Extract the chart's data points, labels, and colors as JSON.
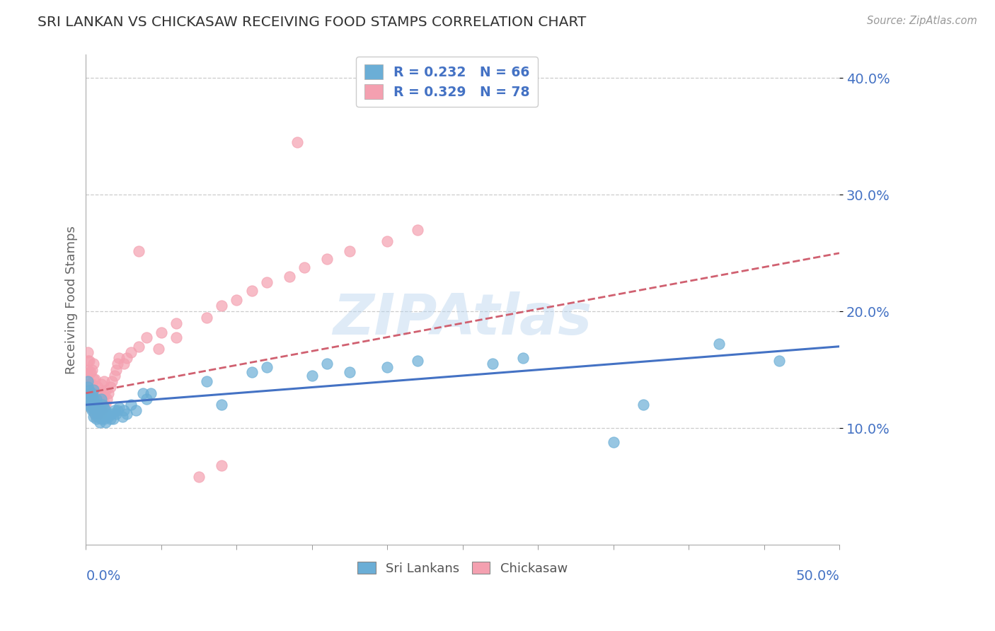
{
  "title": "SRI LANKAN VS CHICKASAW RECEIVING FOOD STAMPS CORRELATION CHART",
  "source": "Source: ZipAtlas.com",
  "ylabel": "Receiving Food Stamps",
  "legend_label1": "Sri Lankans",
  "legend_label2": "Chickasaw",
  "legend_r1": "R = 0.232",
  "legend_n1": "N = 66",
  "legend_r2": "R = 0.329",
  "legend_n2": "N = 78",
  "xlim": [
    0.0,
    0.5
  ],
  "ylim": [
    0.0,
    0.42
  ],
  "yticks": [
    0.1,
    0.2,
    0.3,
    0.4
  ],
  "ytick_labels": [
    "10.0%",
    "20.0%",
    "30.0%",
    "40.0%"
  ],
  "color_sri": "#6baed6",
  "color_chickasaw": "#f4a0b0",
  "trendline_sri_color": "#4472c4",
  "trendline_chickasaw_color": "#d06070",
  "watermark": "ZIPAtlas",
  "watermark_color": "#b8d4ee",
  "background_color": "#ffffff",
  "grid_color": "#cccccc",
  "sri_x": [
    0.001,
    0.001,
    0.001,
    0.001,
    0.002,
    0.002,
    0.002,
    0.003,
    0.003,
    0.004,
    0.004,
    0.004,
    0.005,
    0.005,
    0.005,
    0.005,
    0.006,
    0.006,
    0.007,
    0.007,
    0.007,
    0.008,
    0.008,
    0.009,
    0.009,
    0.01,
    0.01,
    0.01,
    0.011,
    0.011,
    0.012,
    0.012,
    0.013,
    0.013,
    0.014,
    0.015,
    0.016,
    0.017,
    0.018,
    0.019,
    0.02,
    0.021,
    0.022,
    0.024,
    0.025,
    0.027,
    0.03,
    0.033,
    0.038,
    0.04,
    0.043,
    0.08,
    0.09,
    0.11,
    0.12,
    0.15,
    0.16,
    0.175,
    0.2,
    0.22,
    0.27,
    0.29,
    0.35,
    0.37,
    0.42,
    0.46
  ],
  "sri_y": [
    0.125,
    0.13,
    0.135,
    0.14,
    0.12,
    0.125,
    0.132,
    0.118,
    0.128,
    0.115,
    0.122,
    0.13,
    0.11,
    0.118,
    0.125,
    0.133,
    0.112,
    0.12,
    0.108,
    0.115,
    0.125,
    0.11,
    0.12,
    0.105,
    0.115,
    0.108,
    0.115,
    0.125,
    0.11,
    0.12,
    0.108,
    0.118,
    0.105,
    0.115,
    0.112,
    0.11,
    0.108,
    0.112,
    0.108,
    0.115,
    0.112,
    0.115,
    0.118,
    0.11,
    0.115,
    0.112,
    0.12,
    0.115,
    0.13,
    0.125,
    0.13,
    0.14,
    0.12,
    0.148,
    0.152,
    0.145,
    0.155,
    0.148,
    0.152,
    0.158,
    0.155,
    0.16,
    0.088,
    0.12,
    0.172,
    0.158
  ],
  "chickasaw_x": [
    0.001,
    0.001,
    0.001,
    0.001,
    0.001,
    0.001,
    0.002,
    0.002,
    0.002,
    0.002,
    0.002,
    0.003,
    0.003,
    0.003,
    0.003,
    0.004,
    0.004,
    0.004,
    0.004,
    0.005,
    0.005,
    0.005,
    0.005,
    0.005,
    0.006,
    0.006,
    0.006,
    0.006,
    0.007,
    0.007,
    0.007,
    0.008,
    0.008,
    0.008,
    0.009,
    0.009,
    0.01,
    0.01,
    0.01,
    0.011,
    0.011,
    0.012,
    0.012,
    0.012,
    0.013,
    0.013,
    0.014,
    0.015,
    0.016,
    0.017,
    0.019,
    0.02,
    0.021,
    0.022,
    0.025,
    0.027,
    0.03,
    0.035,
    0.04,
    0.05,
    0.06,
    0.08,
    0.09,
    0.1,
    0.11,
    0.12,
    0.135,
    0.145,
    0.16,
    0.175,
    0.2,
    0.22,
    0.035,
    0.14,
    0.048,
    0.06,
    0.075,
    0.09
  ],
  "chickasaw_y": [
    0.128,
    0.135,
    0.142,
    0.15,
    0.158,
    0.165,
    0.122,
    0.13,
    0.138,
    0.148,
    0.158,
    0.12,
    0.128,
    0.138,
    0.148,
    0.118,
    0.128,
    0.138,
    0.15,
    0.115,
    0.122,
    0.132,
    0.142,
    0.155,
    0.112,
    0.12,
    0.132,
    0.142,
    0.11,
    0.12,
    0.132,
    0.112,
    0.122,
    0.135,
    0.115,
    0.128,
    0.112,
    0.125,
    0.138,
    0.118,
    0.13,
    0.118,
    0.128,
    0.14,
    0.12,
    0.132,
    0.125,
    0.13,
    0.135,
    0.14,
    0.145,
    0.15,
    0.155,
    0.16,
    0.155,
    0.16,
    0.165,
    0.17,
    0.178,
    0.182,
    0.19,
    0.195,
    0.205,
    0.21,
    0.218,
    0.225,
    0.23,
    0.238,
    0.245,
    0.252,
    0.26,
    0.27,
    0.252,
    0.345,
    0.168,
    0.178,
    0.058,
    0.068
  ]
}
